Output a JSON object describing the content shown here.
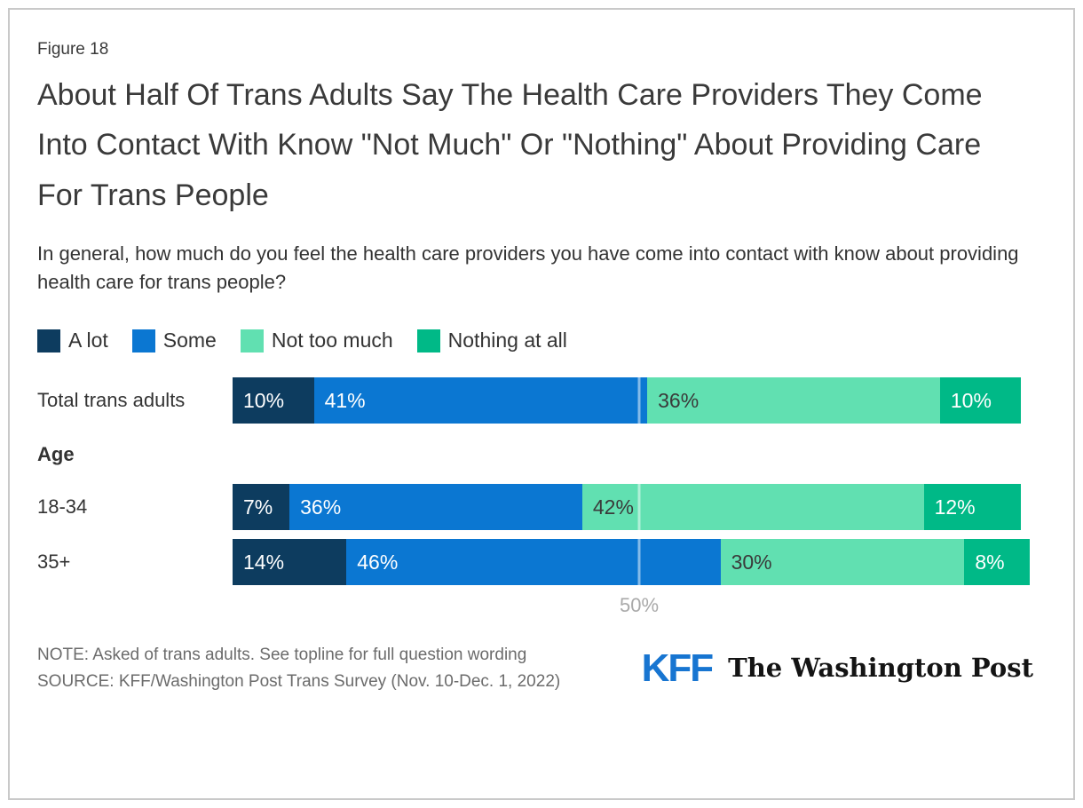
{
  "figure_label": "Figure 18",
  "title": "About Half Of Trans Adults Say The Health Care Providers They Come Into Contact With Know \"Not Much\" Or \"Nothing\" About Providing Care For Trans People",
  "subtitle": "In general, how much do you feel the health care providers you have come into contact with know about providing health care for trans people?",
  "legend": {
    "items": [
      {
        "label": "A lot",
        "color": "#0d3c5f",
        "label_color": "#ffffff"
      },
      {
        "label": "Some",
        "color": "#0b77d2",
        "label_color": "#ffffff"
      },
      {
        "label": "Not too much",
        "color": "#61e0b1",
        "label_color": "#3a3a3a"
      },
      {
        "label": "Nothing at all",
        "color": "#00b987",
        "label_color": "#ffffff"
      }
    ]
  },
  "chart_data": {
    "type": "bar",
    "variant": "horizontal-stacked",
    "unit": "%",
    "xlim": [
      0,
      100
    ],
    "axis_tick": "50%",
    "gridline_pct": 50,
    "grid": "single-line-at-50",
    "legend_position": "top-left",
    "group_header": "Age",
    "categories": [
      "Total trans adults",
      "18-34",
      "35+"
    ],
    "series": [
      {
        "name": "A lot",
        "values": [
          10,
          7,
          14
        ]
      },
      {
        "name": "Some",
        "values": [
          41,
          36,
          46
        ]
      },
      {
        "name": "Not too much",
        "values": [
          36,
          42,
          30
        ]
      },
      {
        "name": "Nothing at all",
        "values": [
          10,
          12,
          8
        ]
      }
    ],
    "rows": [
      {
        "label": "Total trans adults",
        "segments": [
          {
            "legend": "A lot",
            "pct": 10,
            "label": "10%"
          },
          {
            "legend": "Some",
            "pct": 41,
            "label": "41%"
          },
          {
            "legend": "Not too much",
            "pct": 36,
            "label": "36%"
          },
          {
            "legend": "Nothing at all",
            "pct": 10,
            "label": "10%"
          }
        ]
      },
      {
        "label": "18-34",
        "segments": [
          {
            "legend": "A lot",
            "pct": 7,
            "label": "7%"
          },
          {
            "legend": "Some",
            "pct": 36,
            "label": "36%"
          },
          {
            "legend": "Not too much",
            "pct": 42,
            "label": "42%"
          },
          {
            "legend": "Nothing at all",
            "pct": 12,
            "label": "12%"
          }
        ]
      },
      {
        "label": "35+",
        "segments": [
          {
            "legend": "A lot",
            "pct": 14,
            "label": "14%"
          },
          {
            "legend": "Some",
            "pct": 46,
            "label": "46%"
          },
          {
            "legend": "Not too much",
            "pct": 30,
            "label": "30%"
          },
          {
            "legend": "Nothing at all",
            "pct": 8,
            "label": "8%"
          }
        ]
      }
    ]
  },
  "footer": {
    "note": "NOTE: Asked of trans adults. See topline for full question wording",
    "source": "SOURCE: KFF/Washington Post Trans Survey (Nov. 10-Dec. 1, 2022)",
    "logo_kff": "KFF",
    "logo_wapo": "The Washington Post"
  },
  "colors": {
    "card_border": "#c9c9c9",
    "title_text": "#3a3a3a",
    "body_text": "#333333",
    "note_text": "#6b6b6b",
    "axis_text": "#a9a9a9",
    "kff_blue": "#1775d1",
    "gridline": "rgba(255,255,255,0.5)"
  }
}
